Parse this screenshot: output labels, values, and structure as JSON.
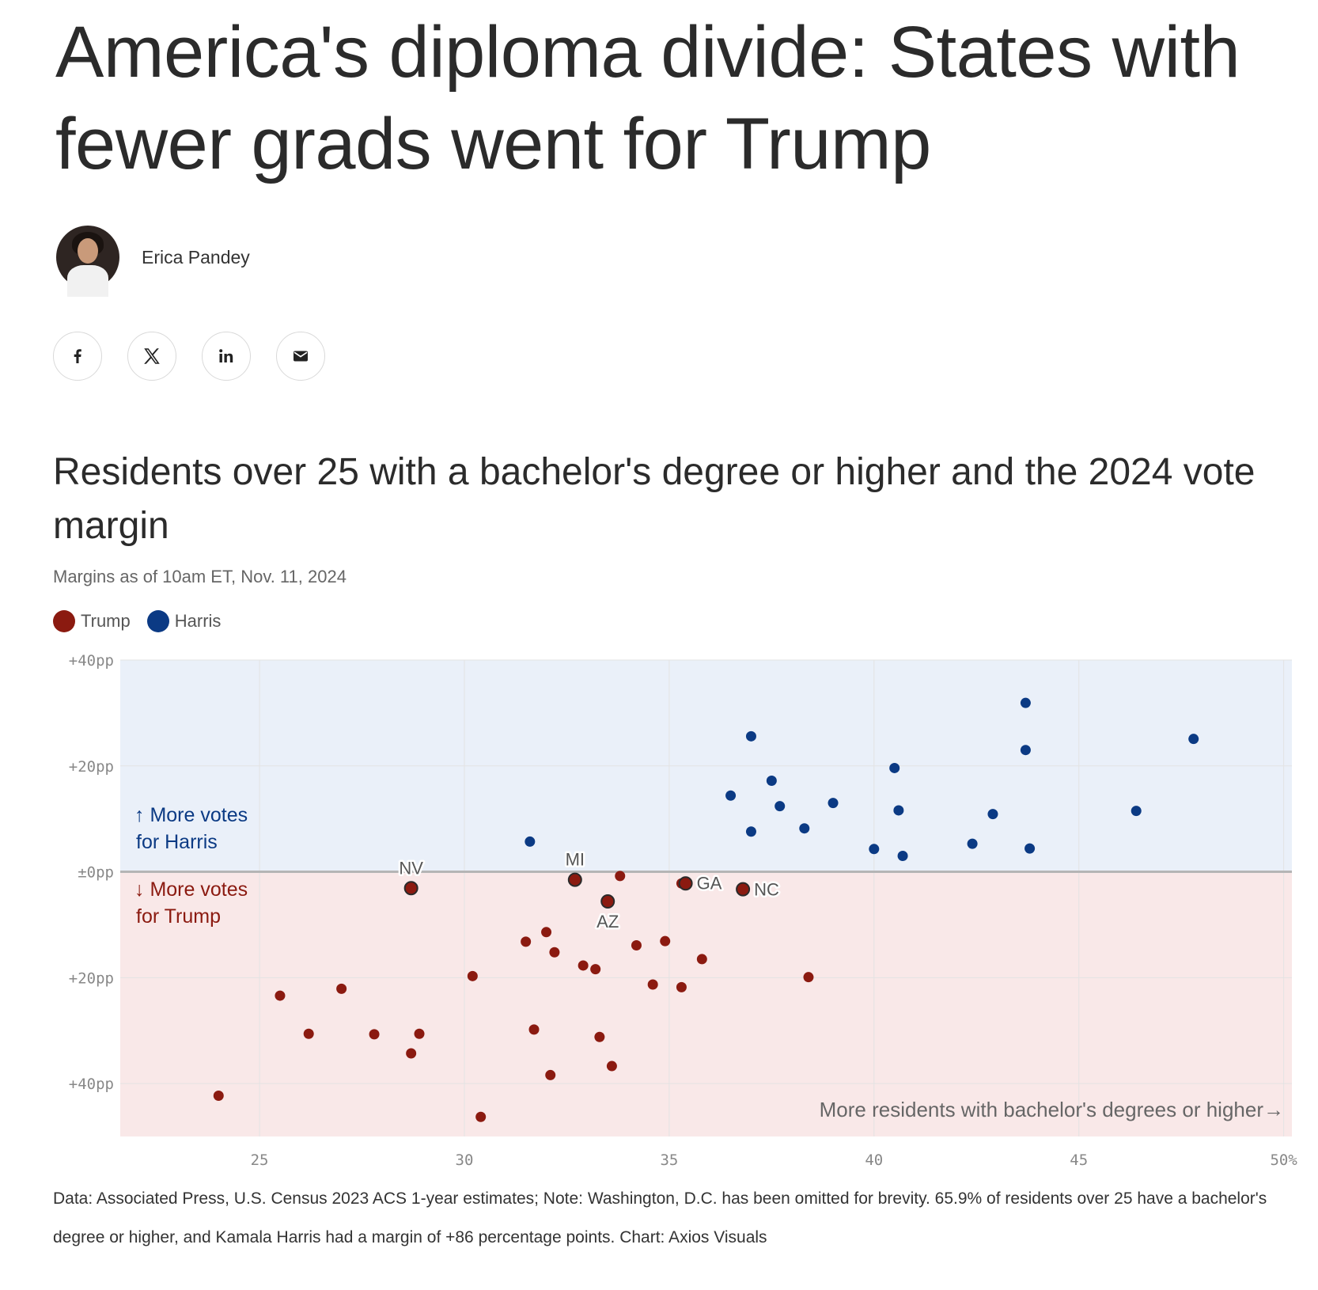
{
  "article": {
    "headline": "America's diploma divide: States with fewer grads went for Trump",
    "author": "Erica Pandey"
  },
  "share": {
    "facebook_label": "f",
    "x_label": "X",
    "linkedin_label": "in",
    "email_label": "email"
  },
  "icons": {
    "facebook": "facebook-icon",
    "x": "x-icon",
    "linkedin": "linkedin-icon",
    "email": "email-icon"
  },
  "colors": {
    "trump": "#8b1a10",
    "harris": "#0b3a84",
    "harris_bg": "#eaf0f9",
    "trump_bg": "#f9e8e8",
    "zero_line": "#b5b5b5",
    "grid": "#e3e3e3"
  },
  "chart_data": {
    "type": "scatter",
    "title": "Residents over 25 with a bachelor's degree or higher and the 2024 vote margin",
    "subtitle": "Margins as of 10am ET, Nov. 11, 2024",
    "xlim": [
      21.6,
      50.2
    ],
    "ylim": [
      -50,
      40
    ],
    "x_ticks": [
      {
        "value": 25,
        "label": "25"
      },
      {
        "value": 30,
        "label": "30"
      },
      {
        "value": 35,
        "label": "35"
      },
      {
        "value": 40,
        "label": "40"
      },
      {
        "value": 45,
        "label": "45"
      },
      {
        "value": 50,
        "label": "50%"
      }
    ],
    "y_ticks": [
      {
        "value": 40,
        "label": "+40pp"
      },
      {
        "value": 20,
        "label": "+20pp"
      },
      {
        "value": 0,
        "label": "±0pp"
      },
      {
        "value": -20,
        "label": "+20pp"
      },
      {
        "value": -40,
        "label": "+40pp"
      }
    ],
    "grid": true,
    "legend_position": "top-left",
    "annotations": {
      "harris": [
        "↑ More votes",
        "for Harris"
      ],
      "trump": [
        "↓ More votes",
        "for Trump"
      ],
      "x_axis": "More residents with bachelor's degrees or higher→"
    },
    "series": [
      {
        "name": "Trump",
        "points": [
          {
            "x": 24.0,
            "y": -42.3
          },
          {
            "x": 25.5,
            "y": -23.4
          },
          {
            "x": 26.2,
            "y": -30.6
          },
          {
            "x": 27.0,
            "y": -22.1
          },
          {
            "x": 27.8,
            "y": -30.7
          },
          {
            "x": 28.7,
            "y": -3.1,
            "label": "NV"
          },
          {
            "x": 28.7,
            "y": -34.3
          },
          {
            "x": 28.9,
            "y": -30.6
          },
          {
            "x": 30.2,
            "y": -19.7
          },
          {
            "x": 30.4,
            "y": -46.3
          },
          {
            "x": 31.5,
            "y": -13.2
          },
          {
            "x": 31.7,
            "y": -29.8
          },
          {
            "x": 32.0,
            "y": -11.4
          },
          {
            "x": 32.1,
            "y": -38.4
          },
          {
            "x": 32.2,
            "y": -15.2
          },
          {
            "x": 32.7,
            "y": -1.5,
            "label": "MI"
          },
          {
            "x": 32.9,
            "y": -17.7
          },
          {
            "x": 33.2,
            "y": -18.4
          },
          {
            "x": 33.3,
            "y": -31.2
          },
          {
            "x": 33.5,
            "y": -5.6,
            "label": "AZ"
          },
          {
            "x": 33.6,
            "y": -36.7
          },
          {
            "x": 33.8,
            "y": -0.8
          },
          {
            "x": 34.2,
            "y": -13.9
          },
          {
            "x": 34.6,
            "y": -21.3
          },
          {
            "x": 34.9,
            "y": -13.1
          },
          {
            "x": 35.3,
            "y": -21.8
          },
          {
            "x": 35.3,
            "y": -2.2
          },
          {
            "x": 35.4,
            "y": -2.2,
            "label": "GA"
          },
          {
            "x": 35.8,
            "y": -16.5
          },
          {
            "x": 36.8,
            "y": -3.3,
            "label": "NC"
          },
          {
            "x": 38.4,
            "y": -19.9
          }
        ]
      },
      {
        "name": "Harris",
        "points": [
          {
            "x": 31.6,
            "y": 5.7
          },
          {
            "x": 36.5,
            "y": 14.4
          },
          {
            "x": 37.0,
            "y": 25.6
          },
          {
            "x": 37.0,
            "y": 7.6
          },
          {
            "x": 37.5,
            "y": 17.2
          },
          {
            "x": 37.7,
            "y": 12.4
          },
          {
            "x": 38.3,
            "y": 8.2
          },
          {
            "x": 39.0,
            "y": 13.0
          },
          {
            "x": 40.0,
            "y": 4.3
          },
          {
            "x": 40.5,
            "y": 19.6
          },
          {
            "x": 40.6,
            "y": 11.6
          },
          {
            "x": 40.7,
            "y": 3.0
          },
          {
            "x": 42.4,
            "y": 5.3
          },
          {
            "x": 42.9,
            "y": 10.9
          },
          {
            "x": 43.7,
            "y": 31.9
          },
          {
            "x": 43.7,
            "y": 23.0
          },
          {
            "x": 43.8,
            "y": 4.4
          },
          {
            "x": 46.4,
            "y": 11.5
          },
          {
            "x": 47.8,
            "y": 25.1
          }
        ]
      }
    ]
  },
  "footnote": "Data: Associated Press, U.S. Census 2023 ACS 1-year estimates; Note: Washington, D.C. has been omitted for brevity. 65.9% of residents over 25 have a bachelor's degree or higher, and Kamala Harris had a margin of +86 percentage points. Chart: Axios Visuals"
}
